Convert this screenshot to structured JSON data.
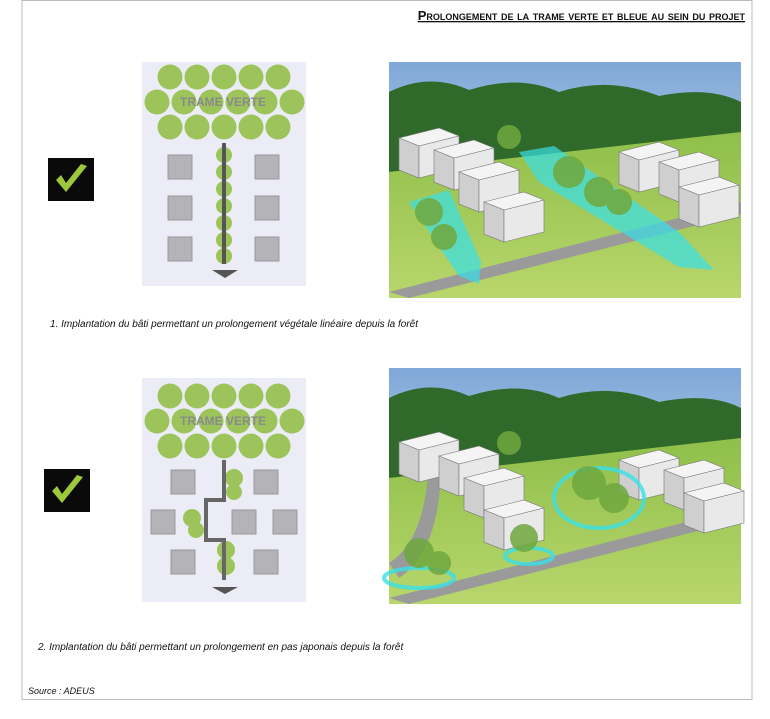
{
  "header": {
    "title": "Prolongement de la trame verte et bleue au sein du projet"
  },
  "panels": [
    {
      "label": "TRAME VERTE",
      "caption": "1. Implantation du bâti permettant un prolongement végétale linéaire depuis la forêt"
    },
    {
      "label": "TRAME VERTE",
      "caption": "2. Implantation du bâti permettant un prolongement en pas japonais depuis la forêt"
    }
  ],
  "source": "Source : ADEUS"
}
